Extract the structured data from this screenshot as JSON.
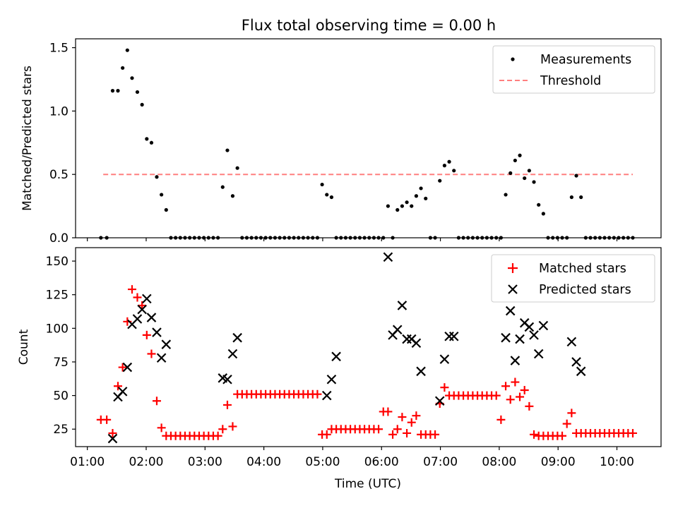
{
  "chart_data": [
    {
      "type": "scatter",
      "title": "Flux total observing time = 0.00 h",
      "xlabel": "",
      "ylabel": "Matched/Predicted stars",
      "xlim": [
        0.8,
        10.75
      ],
      "ylim": [
        0,
        1.57
      ],
      "grid": false,
      "legend_position": "top-right",
      "yticks": [
        0,
        0.5,
        1.0,
        1.5
      ],
      "ytick_labels": [
        "0.0",
        "0.5",
        "1.0",
        "1.5"
      ],
      "colors": {
        "measurements": "#000000",
        "threshold": "#ff7f7f"
      },
      "series": [
        {
          "name": "Measurements",
          "marker": "dot",
          "x": [
            1.23,
            1.33,
            1.43,
            1.52,
            1.6,
            1.68,
            1.76,
            1.85,
            1.93,
            2.01,
            2.09,
            2.18,
            2.26,
            2.34,
            2.42,
            2.5,
            2.58,
            2.66,
            2.74,
            2.82,
            2.9,
            2.98,
            3.06,
            3.14,
            3.22,
            3.3,
            3.38,
            3.47,
            3.55,
            3.63,
            3.71,
            3.79,
            3.87,
            3.95,
            4.03,
            4.11,
            4.19,
            4.27,
            4.35,
            4.43,
            4.51,
            4.59,
            4.67,
            4.75,
            4.83,
            4.91,
            4.99,
            5.07,
            5.15,
            5.23,
            5.31,
            5.39,
            5.47,
            5.55,
            5.63,
            5.71,
            5.79,
            5.87,
            5.95,
            6.03,
            6.11,
            6.19,
            6.27,
            6.35,
            6.43,
            6.51,
            6.59,
            6.67,
            6.75,
            6.83,
            6.91,
            6.99,
            7.07,
            7.15,
            7.23,
            7.31,
            7.39,
            7.47,
            7.55,
            7.63,
            7.71,
            7.79,
            7.87,
            7.95,
            8.03,
            8.11,
            8.19,
            8.27,
            8.35,
            8.43,
            8.51,
            8.59,
            8.67,
            8.75,
            8.83,
            8.91,
            8.99,
            9.07,
            9.15,
            9.23,
            9.31,
            9.39,
            9.47,
            9.55,
            9.63,
            9.71,
            9.79,
            9.87,
            9.95,
            10.03,
            10.11,
            10.19,
            10.27
          ],
          "y": [
            0,
            0,
            1.16,
            1.16,
            1.34,
            1.48,
            1.26,
            1.15,
            1.05,
            0.78,
            0.75,
            0.48,
            0.34,
            0.22,
            0,
            0,
            0,
            0,
            0,
            0,
            0,
            0,
            0,
            0,
            0,
            0.4,
            0.69,
            0.33,
            0.55,
            0,
            0,
            0,
            0,
            0,
            0,
            0,
            0,
            0,
            0,
            0,
            0,
            0,
            0,
            0,
            0,
            0,
            0.42,
            0.34,
            0.32,
            0,
            0,
            0,
            0,
            0,
            0,
            0,
            0,
            0,
            0,
            0,
            0.25,
            0,
            0.22,
            0.25,
            0.28,
            0.25,
            0.33,
            0.39,
            0.31,
            0,
            0,
            0.45,
            0.57,
            0.6,
            0.53,
            0,
            0,
            0,
            0,
            0,
            0,
            0,
            0,
            0,
            0,
            0.34,
            0.51,
            0.61,
            0.65,
            0.47,
            0.53,
            0.44,
            0.26,
            0.19,
            0,
            0,
            0,
            0,
            0,
            0.32,
            0.49,
            0.32,
            0,
            0,
            0,
            0,
            0,
            0,
            0,
            0,
            0,
            0,
            0
          ]
        },
        {
          "name": "Threshold",
          "type": "line",
          "style": "dashed",
          "x": [
            1.27,
            10.27
          ],
          "y": [
            0.5,
            0.5
          ]
        }
      ]
    },
    {
      "type": "scatter",
      "title": "",
      "xlabel": "Time (UTC)",
      "ylabel": "Count",
      "xlim": [
        0.8,
        10.75
      ],
      "ylim": [
        12,
        160
      ],
      "grid": false,
      "legend_position": "top-right",
      "xticks": [
        1,
        2,
        3,
        4,
        5,
        6,
        7,
        8,
        9,
        10
      ],
      "xtick_labels": [
        "01:00",
        "02:00",
        "03:00",
        "04:00",
        "05:00",
        "06:00",
        "07:00",
        "08:00",
        "09:00",
        "10:00"
      ],
      "yticks": [
        25,
        50,
        75,
        100,
        125,
        150
      ],
      "ytick_labels": [
        "25",
        "50",
        "75",
        "100",
        "125",
        "150"
      ],
      "colors": {
        "matched": "#ff0000",
        "predicted": "#000000"
      },
      "series": [
        {
          "name": "Matched stars",
          "marker": "plus",
          "x": [
            1.23,
            1.33,
            1.43,
            1.52,
            1.6,
            1.68,
            1.76,
            1.85,
            1.93,
            2.01,
            2.09,
            2.18,
            2.26,
            2.34,
            2.42,
            2.5,
            2.58,
            2.66,
            2.74,
            2.82,
            2.9,
            2.98,
            3.06,
            3.14,
            3.22,
            3.3,
            3.38,
            3.47,
            3.55,
            3.63,
            3.71,
            3.79,
            3.87,
            3.95,
            4.03,
            4.11,
            4.19,
            4.27,
            4.35,
            4.43,
            4.51,
            4.59,
            4.67,
            4.75,
            4.83,
            4.91,
            4.99,
            5.07,
            5.15,
            5.23,
            5.31,
            5.39,
            5.47,
            5.55,
            5.63,
            5.71,
            5.79,
            5.87,
            5.95,
            6.03,
            6.11,
            6.19,
            6.27,
            6.35,
            6.43,
            6.51,
            6.59,
            6.67,
            6.75,
            6.83,
            6.91,
            6.99,
            7.07,
            7.15,
            7.23,
            7.31,
            7.39,
            7.47,
            7.55,
            7.63,
            7.71,
            7.79,
            7.87,
            7.95,
            8.03,
            8.11,
            8.19,
            8.27,
            8.35,
            8.43,
            8.51,
            8.59,
            8.67,
            8.75,
            8.83,
            8.91,
            8.99,
            9.07,
            9.15,
            9.23,
            9.31,
            9.39,
            9.47,
            9.55,
            9.63,
            9.71,
            9.79,
            9.87,
            9.95,
            10.03,
            10.11,
            10.19,
            10.27
          ],
          "y": [
            32,
            32,
            22,
            57,
            71,
            105,
            129,
            123,
            117,
            95,
            81,
            46,
            26,
            20,
            20,
            20,
            20,
            20,
            20,
            20,
            20,
            20,
            20,
            20,
            20,
            25,
            43,
            27,
            51,
            51,
            51,
            51,
            51,
            51,
            51,
            51,
            51,
            51,
            51,
            51,
            51,
            51,
            51,
            51,
            51,
            51,
            21,
            21,
            25,
            25,
            25,
            25,
            25,
            25,
            25,
            25,
            25,
            25,
            25,
            38,
            38,
            21,
            25,
            34,
            22,
            30,
            35,
            21,
            21,
            21,
            21,
            44,
            56,
            50,
            50,
            50,
            50,
            50,
            50,
            50,
            50,
            50,
            50,
            50,
            32,
            57,
            47,
            60,
            49,
            54,
            42,
            21,
            20,
            20,
            20,
            20,
            20,
            20,
            29,
            37,
            22,
            22,
            22,
            22,
            22,
            22,
            22,
            22,
            22,
            22,
            22,
            22,
            22
          ]
        },
        {
          "name": "Predicted stars",
          "marker": "x",
          "x": [
            1.43,
            1.52,
            1.6,
            1.68,
            1.76,
            1.85,
            1.93,
            2.01,
            2.09,
            2.18,
            2.26,
            2.34,
            3.3,
            3.38,
            3.47,
            3.55,
            5.07,
            5.15,
            5.23,
            6.11,
            6.19,
            6.27,
            6.35,
            6.43,
            6.51,
            6.59,
            6.67,
            6.99,
            7.07,
            7.15,
            7.23,
            8.11,
            8.19,
            8.27,
            8.35,
            8.43,
            8.51,
            8.59,
            8.67,
            8.75,
            9.23,
            9.31,
            9.39
          ],
          "y": [
            18,
            49,
            53,
            71,
            103,
            107,
            114,
            122,
            108,
            97,
            78,
            88,
            63,
            62,
            81,
            93,
            50,
            62,
            79,
            153,
            95,
            99,
            117,
            92,
            92,
            89,
            68,
            46,
            77,
            94,
            94,
            93,
            113,
            76,
            92,
            104,
            101,
            95,
            81,
            102,
            90,
            75,
            68
          ]
        }
      ]
    }
  ]
}
